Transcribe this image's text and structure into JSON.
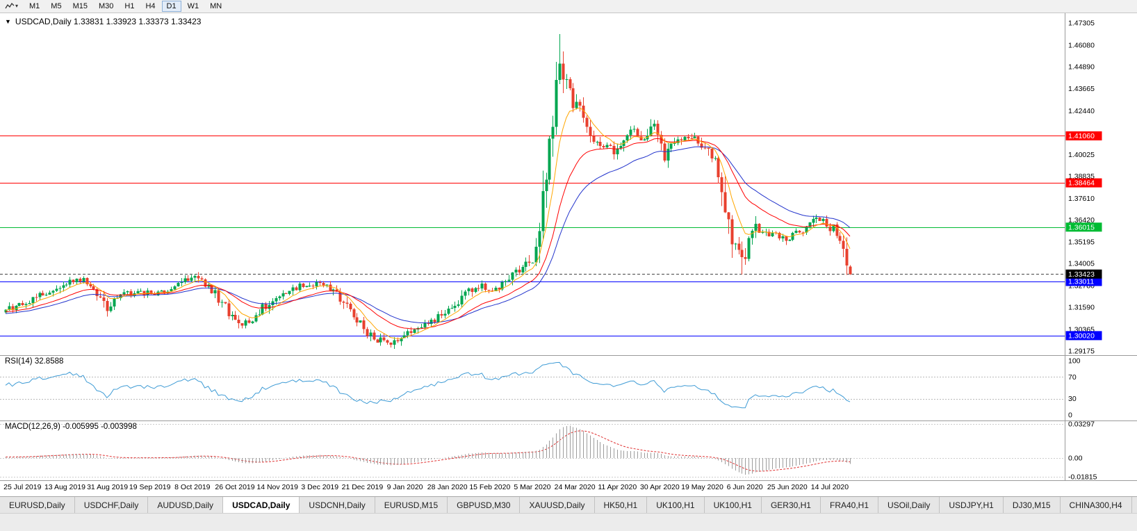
{
  "toolbar": {
    "timeframes": [
      "M1",
      "M5",
      "M15",
      "M30",
      "H1",
      "H4",
      "D1",
      "W1",
      "MN"
    ],
    "active_timeframe": "D1",
    "icon_caret": "▾"
  },
  "header": {
    "collapse_arrow": "▼",
    "symbol": "USDCAD,Daily",
    "open": "1.33831",
    "high": "1.33923",
    "low": "1.33373",
    "close": "1.33423",
    "line": "USDCAD,Daily 1.33831 1.33923 1.33373 1.33423"
  },
  "tabs": {
    "items": [
      "EURUSD,Daily",
      "USDCHF,Daily",
      "AUDUSD,Daily",
      "USDCAD,Daily",
      "USDCNH,Daily",
      "EURUSD,M15",
      "GBPUSD,M30",
      "XAUUSD,Daily",
      "HK50,H1",
      "UK100,H1",
      "UK100,H1",
      "GER30,H1",
      "FRA40,H1",
      "USOil,Daily",
      "USDJPY,H1",
      "DJ30,M15",
      "CHINA300,H4"
    ],
    "active_index": 3
  },
  "chart_data": {
    "type": "candlestick",
    "symbol": "USDCAD",
    "timeframe": "Daily",
    "title": "USDCAD,Daily",
    "last_bar": {
      "open": 1.33831,
      "high": 1.33923,
      "low": 1.33373,
      "close": 1.33423
    },
    "bars_total": 251,
    "first_label_bar": 5,
    "bars_per_label": 12.58,
    "x_labels": [
      "25 Jul 2019",
      "13 Aug 2019",
      "31 Aug 2019",
      "19 Sep 2019",
      "8 Oct 2019",
      "26 Oct 2019",
      "14 Nov 2019",
      "3 Dec 2019",
      "21 Dec 2019",
      "9 Jan 2020",
      "28 Jan 2020",
      "15 Feb 2020",
      "5 Mar 2020",
      "24 Mar 2020",
      "11 Apr 2020",
      "30 Apr 2020",
      "19 May 2020",
      "6 Jun 2020",
      "25 Jun 2020",
      "14 Jul 2020"
    ],
    "price_axis_ticks": [
      "1.47305",
      "1.46080",
      "1.44890",
      "1.43665",
      "1.42440",
      "1.40025",
      "1.38835",
      "1.37610",
      "1.36420",
      "1.35195",
      "1.34005",
      "1.32780",
      "1.31590",
      "1.30365",
      "1.29175"
    ],
    "price_range_top": 1.4784,
    "price_range_bottom": 1.2894,
    "close_anchors": [
      [
        0,
        1.3145
      ],
      [
        4,
        1.317
      ],
      [
        8,
        1.32
      ],
      [
        12,
        1.3245
      ],
      [
        16,
        1.3285
      ],
      [
        19,
        1.331
      ],
      [
        22,
        1.3318
      ],
      [
        25,
        1.3285
      ],
      [
        28,
        1.3215
      ],
      [
        30,
        1.3152
      ],
      [
        33,
        1.32
      ],
      [
        36,
        1.3232
      ],
      [
        40,
        1.3246
      ],
      [
        44,
        1.3222
      ],
      [
        48,
        1.3258
      ],
      [
        52,
        1.3292
      ],
      [
        55,
        1.3322
      ],
      [
        58,
        1.3295
      ],
      [
        62,
        1.3235
      ],
      [
        66,
        1.3125
      ],
      [
        70,
        1.3062
      ],
      [
        73,
        1.3098
      ],
      [
        76,
        1.3152
      ],
      [
        80,
        1.3212
      ],
      [
        84,
        1.3252
      ],
      [
        88,
        1.3278
      ],
      [
        92,
        1.3296
      ],
      [
        96,
        1.3272
      ],
      [
        100,
        1.3188
      ],
      [
        104,
        1.3092
      ],
      [
        107,
        1.3015
      ],
      [
        110,
        1.2978
      ],
      [
        113,
        1.2962
      ],
      [
        116,
        1.2988
      ],
      [
        120,
        1.3035
      ],
      [
        124,
        1.3068
      ],
      [
        128,
        1.3102
      ],
      [
        132,
        1.3148
      ],
      [
        136,
        1.3226
      ],
      [
        140,
        1.3278
      ],
      [
        143,
        1.3256
      ],
      [
        146,
        1.3272
      ],
      [
        150,
        1.333
      ],
      [
        153,
        1.3388
      ],
      [
        156,
        1.3424
      ],
      [
        158,
        1.356
      ],
      [
        160,
        1.3855
      ],
      [
        162,
        1.415
      ],
      [
        164,
        1.4485
      ],
      [
        166,
        1.4402
      ],
      [
        168,
        1.4282
      ],
      [
        170,
        1.4232
      ],
      [
        173,
        1.4102
      ],
      [
        176,
        1.4062
      ],
      [
        180,
        1.4022
      ],
      [
        183,
        1.4092
      ],
      [
        186,
        1.4135
      ],
      [
        189,
        1.4062
      ],
      [
        192,
        1.4158
      ],
      [
        195,
        1.4002
      ],
      [
        198,
        1.4062
      ],
      [
        201,
        1.4102
      ],
      [
        204,
        1.4118
      ],
      [
        207,
        1.4032
      ],
      [
        210,
        1.3962
      ],
      [
        212,
        1.3822
      ],
      [
        214,
        1.3622
      ],
      [
        216,
        1.3492
      ],
      [
        217,
        1.3428
      ],
      [
        218,
        1.3398
      ],
      [
        219,
        1.3425
      ],
      [
        220,
        1.3558
      ],
      [
        222,
        1.3592
      ],
      [
        224,
        1.3552
      ],
      [
        227,
        1.3562
      ],
      [
        230,
        1.3532
      ],
      [
        233,
        1.3558
      ],
      [
        236,
        1.3582
      ],
      [
        239,
        1.3625
      ],
      [
        241,
        1.3645
      ],
      [
        243,
        1.3608
      ],
      [
        245,
        1.3592
      ],
      [
        247,
        1.3542
      ],
      [
        248,
        1.3475
      ],
      [
        249,
        1.3398
      ],
      [
        250,
        1.33423
      ]
    ],
    "spike_highs": [
      [
        164,
        1.4668
      ],
      [
        165,
        1.4572
      ]
    ],
    "spike_lows": [
      [
        70,
        1.3042
      ],
      [
        113,
        1.2952
      ],
      [
        218,
        1.334
      ]
    ],
    "hlines": [
      {
        "price": 1.4106,
        "label": "1.41060",
        "color": "#FF0000"
      },
      {
        "price": 1.38464,
        "label": "1.38464",
        "color": "#FF0000"
      },
      {
        "price": 1.36015,
        "label": "1.36015",
        "color": "#00BB33"
      },
      {
        "price": 1.33011,
        "label": "1.33011",
        "color": "#0000FF"
      },
      {
        "price": 1.3002,
        "label": "1.30020",
        "color": "#0000FF"
      }
    ],
    "bid_line": {
      "value": 1.33423,
      "label": "1.33423",
      "color": "#000000"
    },
    "moving_averages": [
      {
        "period": 8,
        "type": "ema",
        "color": "#FFA600"
      },
      {
        "period": 21,
        "type": "ema",
        "color": "#FF0000"
      },
      {
        "period": 34,
        "type": "ema",
        "color": "#2233CC"
      }
    ],
    "rsi": {
      "header": "RSI(14) 32.8588",
      "period": 14,
      "current": 32.8588,
      "color": "#3E9BD5",
      "axis": [
        {
          "label": "100",
          "value": 100
        },
        {
          "label": "70",
          "value": 70,
          "dashed": true
        },
        {
          "label": "30",
          "value": 30,
          "dashed": true
        },
        {
          "label": "0",
          "value": 0
        }
      ]
    },
    "macd": {
      "header": "MACD(12,26,9) -0.005995 -0.003998",
      "fast": 12,
      "slow": 26,
      "signal": 9,
      "current": [
        -0.005995,
        -0.003998
      ],
      "hist_color": "#9C9C9C",
      "signal_color": "#E03030",
      "axis": [
        {
          "label": "0.03297",
          "value": 0.03297
        },
        {
          "label": "0.00",
          "value": 0
        },
        {
          "label": "-0.01815",
          "value": -0.01815
        }
      ]
    },
    "colors": {
      "up": "#00A650",
      "down": "#E8402E",
      "background": "#FFFFFF"
    }
  }
}
